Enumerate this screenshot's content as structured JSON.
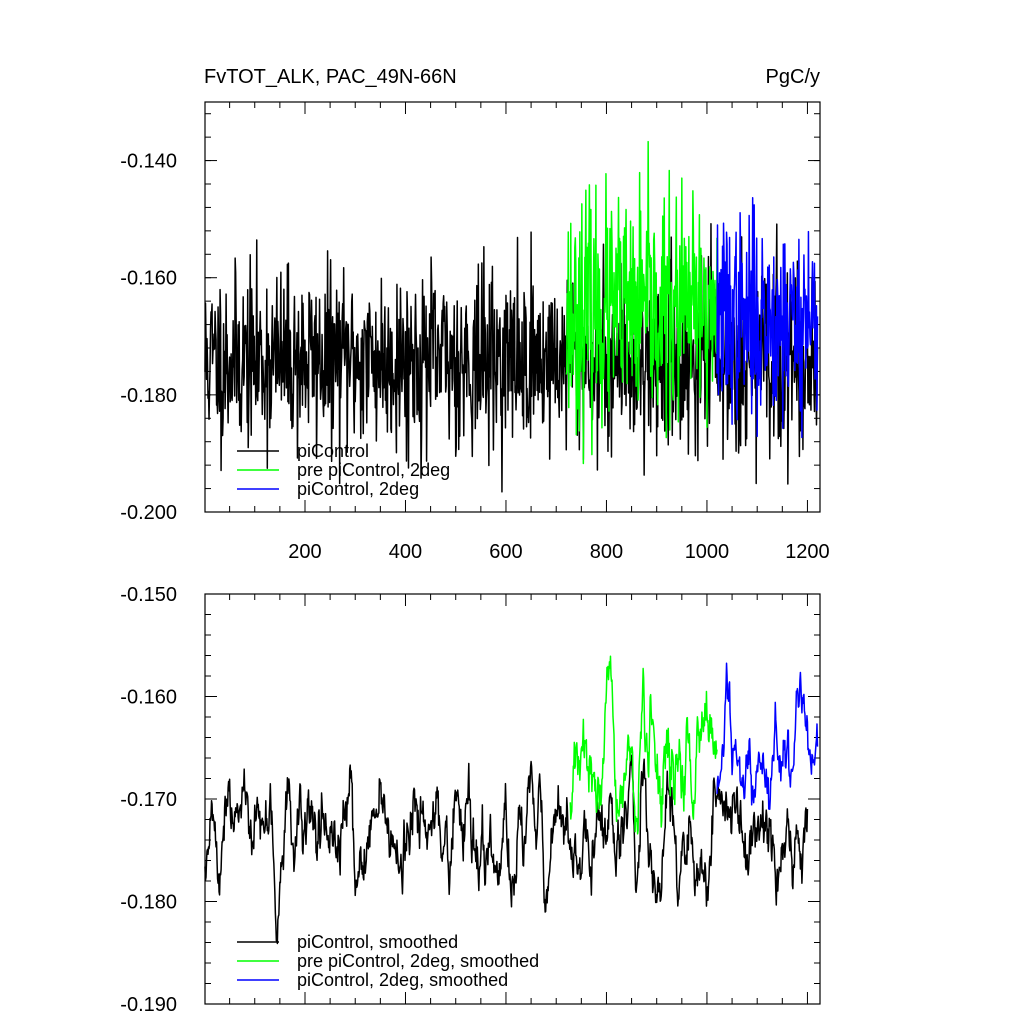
{
  "figure": {
    "title_left": "FvTOT_ALK, PAC_49N-66N",
    "title_right": "PgC/y"
  },
  "chart_data": [
    {
      "type": "line",
      "title": "FvTOT_ALK, PAC_49N-66N",
      "units": "PgC/y",
      "xlim": [
        1,
        1225
      ],
      "ylim": [
        -0.2,
        -0.13
      ],
      "x_ticks": [
        200,
        400,
        600,
        800,
        1000,
        1200
      ],
      "y_ticks": [
        -0.2,
        -0.18,
        -0.16,
        -0.14
      ],
      "y_tick_labels": [
        "-0.200",
        "-0.180",
        "-0.160",
        "-0.140"
      ],
      "legend_placement": "bottom-left",
      "series": [
        {
          "name": "piControl",
          "color": "#000000",
          "x_range": [
            1,
            1220
          ],
          "mean": -0.174,
          "std": 0.0075,
          "min": -0.2,
          "max": -0.1375,
          "seed": 11,
          "smooth": 1
        },
        {
          "name": "pre piControl, 2deg",
          "color": "#00ff00",
          "x_range": [
            720,
            1020
          ],
          "mean": -0.166,
          "std": 0.0095,
          "min": -0.195,
          "max": -0.135,
          "seed": 23,
          "smooth": 1
        },
        {
          "name": "piControl, 2deg",
          "color": "#0000ff",
          "x_range": [
            1020,
            1220
          ],
          "mean": -0.167,
          "std": 0.0085,
          "min": -0.189,
          "max": -0.1415,
          "seed": 37,
          "smooth": 1
        }
      ]
    },
    {
      "type": "line",
      "title": "",
      "xlim": [
        1,
        1225
      ],
      "ylim": [
        -0.19,
        -0.15
      ],
      "x_ticks": [
        200,
        400,
        600,
        800,
        1000,
        1200
      ],
      "y_ticks": [
        -0.19,
        -0.18,
        -0.17,
        -0.16,
        -0.15
      ],
      "y_tick_labels": [
        "-0.190",
        "-0.180",
        "-0.170",
        "-0.160",
        "-0.150"
      ],
      "legend_placement": "bottom-left",
      "series": [
        {
          "name": "piControl, smoothed",
          "color": "#000000",
          "x_range": [
            1,
            1200
          ],
          "mean": -0.1735,
          "std": 0.003,
          "min": -0.187,
          "max": -0.161,
          "seed": 51,
          "smooth": 5
        },
        {
          "name": "pre piControl, 2deg, smoothed",
          "color": "#00ff00",
          "x_range": [
            728,
            1020
          ],
          "mean": -0.166,
          "std": 0.0035,
          "min": -0.176,
          "max": -0.1535,
          "seed": 67,
          "smooth": 5
        },
        {
          "name": "piControl, 2deg, smoothed",
          "color": "#0000ff",
          "x_range": [
            1020,
            1220
          ],
          "mean": -0.1655,
          "std": 0.003,
          "min": -0.171,
          "max": -0.152,
          "seed": 83,
          "smooth": 5
        }
      ]
    }
  ]
}
